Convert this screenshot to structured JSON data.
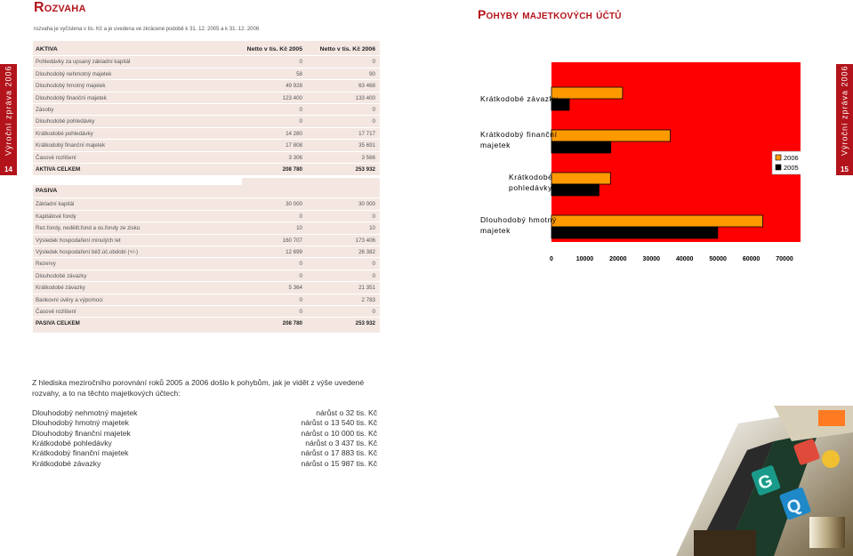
{
  "header": {
    "left_title": "Rozvaha",
    "right_title": "Pohyby majetkových účtů",
    "intro": "rozvaha je vyčíslena v tis. Kč a je uvedena ve zkrácené podobě k 31. 12. 2005 a k 31. 12. 2006"
  },
  "side_tabs": {
    "left": {
      "text": "Výroční zpráva 2006",
      "page": "14"
    },
    "right": {
      "text": "Výroční zpráva 2006",
      "page": "15"
    }
  },
  "balance": {
    "assets_header": {
      "label": "AKTIVA",
      "col1": "Netto v tis. Kč 2005",
      "col2": "Netto v tis. Kč 2006"
    },
    "assets_rows": [
      {
        "label": "Pohledávky za upsaný základní kapitál",
        "v2005": "0",
        "v2006": "0"
      },
      {
        "label": "Dlouhodobý nehmotný majetek",
        "v2005": "58",
        "v2006": "90"
      },
      {
        "label": "Dlouhodobý hmotný majetek",
        "v2005": "49 928",
        "v2006": "63 468"
      },
      {
        "label": "Dlouhodobý finanční majetek",
        "v2005": "123 400",
        "v2006": "133 400"
      },
      {
        "label": "Zásoby",
        "v2005": "0",
        "v2006": "0"
      },
      {
        "label": "Dlouhodobé pohledávky",
        "v2005": "0",
        "v2006": "0"
      },
      {
        "label": "Krátkodobé pohledávky",
        "v2005": "14 280",
        "v2006": "17 717"
      },
      {
        "label": "Krátkodobý finanční majetek",
        "v2005": "17 808",
        "v2006": "35 691"
      },
      {
        "label": "Časové rozlišení",
        "v2005": "3 306",
        "v2006": "3 566"
      }
    ],
    "assets_total": {
      "label": "AKTIVA CELKEM",
      "v2005": "208 780",
      "v2006": "253 932"
    },
    "liabilities_header": {
      "label": "PASIVA"
    },
    "liabilities_rows": [
      {
        "label": "Základní kapitál",
        "v2005": "30 000",
        "v2006": "30 000"
      },
      {
        "label": "Kapitálové fondy",
        "v2005": "0",
        "v2006": "0"
      },
      {
        "label": "Rez.fondy, nedělit.fond a os.fondy ze zisku",
        "v2005": "10",
        "v2006": "10"
      },
      {
        "label": "Výsledek hospodaření minulých let",
        "v2005": "160 707",
        "v2006": "173 406"
      },
      {
        "label": "Výsledek hospodaření běž.úč.období (+/-)",
        "v2005": "12 699",
        "v2006": "26 382"
      },
      {
        "label": "Rezervy",
        "v2005": "0",
        "v2006": "0"
      },
      {
        "label": "Dlouhodobé závazky",
        "v2005": "0",
        "v2006": "0"
      },
      {
        "label": "Krátkodobé závazky",
        "v2005": "5 364",
        "v2006": "21 351"
      },
      {
        "label": "Bankovní úvěry a výpomoci",
        "v2005": "0",
        "v2006": "2 783"
      },
      {
        "label": "Časové rozlišení",
        "v2005": "0",
        "v2006": "0"
      }
    ],
    "liabilities_total": {
      "label": "PASIVA CELKEM",
      "v2005": "208 780",
      "v2006": "253 932"
    }
  },
  "chart_data": {
    "type": "bar",
    "orientation": "horizontal",
    "categories": [
      "Krátkodobé závazky",
      "Krátkodobý finanční majetek",
      "Krátkodobé pohledávky",
      "Dlouhodobý hmotný majetek"
    ],
    "series": [
      {
        "name": "2006",
        "color": "#ff9900",
        "values": [
          21351,
          35691,
          17717,
          63468
        ]
      },
      {
        "name": "2005",
        "color": "#000000",
        "values": [
          5364,
          17808,
          14280,
          49928
        ]
      }
    ],
    "xlim": [
      0,
      70000
    ],
    "x_ticks": [
      "0",
      "10000",
      "20000",
      "30000",
      "40000",
      "50000",
      "60000",
      "70000"
    ],
    "plot_background": "#ff0000",
    "legend_position": "right",
    "grid": false
  },
  "text": {
    "paragraph": "Z hlediska meziročního porovnání roků 2005 a 2006 došlo k pohybům, jak je vidět z výše uvedené rozvahy, a to na těchto majetkových účtech:",
    "changes": [
      {
        "label": "Dlouhodobý nehmotný majetek",
        "change": "nárůst o 32 tis. Kč"
      },
      {
        "label": "Dlouhodobý hmotný majetek",
        "change": "nárůst o 13 540 tis. Kč"
      },
      {
        "label": "Dlouhodobý finanční majetek",
        "change": "nárůst o 10 000 tis. Kč"
      },
      {
        "label": "Krátkodobé pohledávky",
        "change": "nárůst o 3 437 tis. Kč"
      },
      {
        "label": "Krátkodobý finanční majetek",
        "change": "nárůst o 17 883 tis. Kč"
      },
      {
        "label": "Krátkodobé závazky",
        "change": "nárůst o 15 987 tis. Kč"
      }
    ]
  },
  "colors": {
    "accent_red": "#b3141b",
    "table_bg": "#f4e7e2"
  },
  "photo": {
    "description_icon": "slot-machine-photo"
  }
}
